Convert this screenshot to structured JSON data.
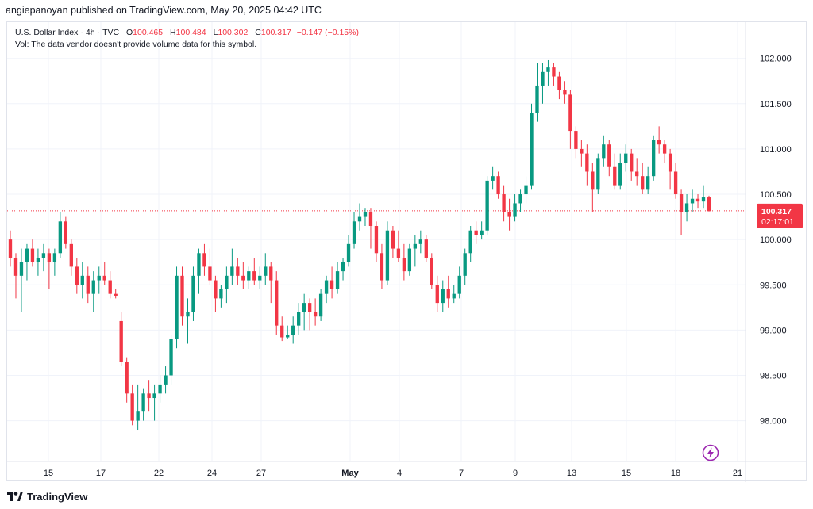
{
  "published": "angiepanoyan published on TradingView.com, May 20, 2025 04:42 UTC",
  "legend": {
    "symbol": "U.S. Dollar Index",
    "interval": "4h",
    "exchange": "TVC",
    "o_key": "O",
    "o_val": "100.465",
    "h_key": "H",
    "h_val": "100.484",
    "l_key": "L",
    "l_val": "100.302",
    "c_key": "C",
    "c_val": "100.317",
    "change": "−0.147 (−0.15%)",
    "vol_note": "Vol: The data vendor doesn't provide volume data for this symbol."
  },
  "price_tag": {
    "price": "100.317",
    "countdown": "02:17:01"
  },
  "footer": {
    "brand": "TradingView",
    "logo_icon": "tradingview-logo-icon"
  },
  "colors": {
    "up": "#089981",
    "down": "#f23645",
    "grid": "#f0f3fa",
    "text": "#131722",
    "accent": "#9c27b0"
  },
  "chart_data": {
    "type": "candlestick",
    "title": "U.S. Dollar Index · 4h · TVC",
    "ylim": [
      97.55,
      102.4
    ],
    "y_ticks": [
      "98.000",
      "98.500",
      "99.000",
      "99.500",
      "100.000",
      "100.500",
      "101.000",
      "101.500",
      "102.000"
    ],
    "x_ticks": [
      "15",
      "17",
      "22",
      "24",
      "27",
      "May",
      "4",
      "7",
      "9",
      "13",
      "15",
      "18",
      "21"
    ],
    "last_price": 100.317,
    "candles": [
      {
        "o": 100.0,
        "h": 100.1,
        "l": 99.7,
        "c": 99.8
      },
      {
        "o": 99.8,
        "h": 99.85,
        "l": 99.35,
        "c": 99.6
      },
      {
        "o": 99.6,
        "h": 99.9,
        "l": 99.2,
        "c": 99.75
      },
      {
        "o": 99.75,
        "h": 99.95,
        "l": 99.55,
        "c": 99.9
      },
      {
        "o": 99.9,
        "h": 100.0,
        "l": 99.7,
        "c": 99.75
      },
      {
        "o": 99.75,
        "h": 99.9,
        "l": 99.6,
        "c": 99.8
      },
      {
        "o": 99.8,
        "h": 99.95,
        "l": 99.65,
        "c": 99.85
      },
      {
        "o": 99.85,
        "h": 99.9,
        "l": 99.45,
        "c": 99.75
      },
      {
        "o": 99.75,
        "h": 99.9,
        "l": 99.6,
        "c": 99.85
      },
      {
        "o": 99.85,
        "h": 100.3,
        "l": 99.8,
        "c": 100.2
      },
      {
        "o": 100.2,
        "h": 100.25,
        "l": 99.9,
        "c": 99.95
      },
      {
        "o": 99.95,
        "h": 100.0,
        "l": 99.6,
        "c": 99.7
      },
      {
        "o": 99.7,
        "h": 99.8,
        "l": 99.4,
        "c": 99.5
      },
      {
        "o": 99.5,
        "h": 99.75,
        "l": 99.35,
        "c": 99.6
      },
      {
        "o": 99.6,
        "h": 99.7,
        "l": 99.3,
        "c": 99.4
      },
      {
        "o": 99.4,
        "h": 99.65,
        "l": 99.2,
        "c": 99.55
      },
      {
        "o": 99.55,
        "h": 99.7,
        "l": 99.4,
        "c": 99.6
      },
      {
        "o": 99.6,
        "h": 99.75,
        "l": 99.5,
        "c": 99.55
      },
      {
        "o": 99.55,
        "h": 99.65,
        "l": 99.35,
        "c": 99.4
      },
      {
        "o": 99.4,
        "h": 99.45,
        "l": 99.35,
        "c": 99.38
      },
      {
        "o": 99.1,
        "h": 99.2,
        "l": 98.6,
        "c": 98.65
      },
      {
        "o": 98.65,
        "h": 98.7,
        "l": 98.2,
        "c": 98.3
      },
      {
        "o": 98.3,
        "h": 98.4,
        "l": 97.95,
        "c": 98.0
      },
      {
        "o": 98.0,
        "h": 98.4,
        "l": 97.9,
        "c": 98.1
      },
      {
        "o": 98.1,
        "h": 98.35,
        "l": 98.0,
        "c": 98.3
      },
      {
        "o": 98.3,
        "h": 98.45,
        "l": 98.1,
        "c": 98.25
      },
      {
        "o": 98.25,
        "h": 98.4,
        "l": 98.0,
        "c": 98.3
      },
      {
        "o": 98.3,
        "h": 98.5,
        "l": 98.2,
        "c": 98.4
      },
      {
        "o": 98.4,
        "h": 98.6,
        "l": 98.3,
        "c": 98.5
      },
      {
        "o": 98.5,
        "h": 98.95,
        "l": 98.4,
        "c": 98.9
      },
      {
        "o": 98.9,
        "h": 99.7,
        "l": 98.8,
        "c": 99.6
      },
      {
        "o": 99.6,
        "h": 99.7,
        "l": 99.05,
        "c": 99.15
      },
      {
        "o": 99.15,
        "h": 99.35,
        "l": 98.85,
        "c": 99.2
      },
      {
        "o": 99.2,
        "h": 99.7,
        "l": 99.1,
        "c": 99.6
      },
      {
        "o": 99.6,
        "h": 99.9,
        "l": 99.4,
        "c": 99.85
      },
      {
        "o": 99.85,
        "h": 99.95,
        "l": 99.6,
        "c": 99.7
      },
      {
        "o": 99.7,
        "h": 99.9,
        "l": 99.5,
        "c": 99.55
      },
      {
        "o": 99.55,
        "h": 99.6,
        "l": 99.2,
        "c": 99.35
      },
      {
        "o": 99.35,
        "h": 99.5,
        "l": 99.25,
        "c": 99.45
      },
      {
        "o": 99.45,
        "h": 99.7,
        "l": 99.3,
        "c": 99.6
      },
      {
        "o": 99.6,
        "h": 99.9,
        "l": 99.5,
        "c": 99.7
      },
      {
        "o": 99.7,
        "h": 99.8,
        "l": 99.5,
        "c": 99.6
      },
      {
        "o": 99.6,
        "h": 99.75,
        "l": 99.45,
        "c": 99.55
      },
      {
        "o": 99.55,
        "h": 99.7,
        "l": 99.45,
        "c": 99.65
      },
      {
        "o": 99.65,
        "h": 99.8,
        "l": 99.5,
        "c": 99.55
      },
      {
        "o": 99.55,
        "h": 99.7,
        "l": 99.45,
        "c": 99.6
      },
      {
        "o": 99.6,
        "h": 99.85,
        "l": 99.5,
        "c": 99.7
      },
      {
        "o": 99.7,
        "h": 99.75,
        "l": 99.3,
        "c": 99.55
      },
      {
        "o": 99.55,
        "h": 99.65,
        "l": 98.95,
        "c": 99.05
      },
      {
        "o": 99.05,
        "h": 99.15,
        "l": 98.88,
        "c": 98.92
      },
      {
        "o": 98.92,
        "h": 99.05,
        "l": 98.9,
        "c": 98.95
      },
      {
        "o": 98.95,
        "h": 99.15,
        "l": 98.85,
        "c": 99.05
      },
      {
        "o": 99.05,
        "h": 99.3,
        "l": 98.95,
        "c": 99.2
      },
      {
        "o": 99.2,
        "h": 99.4,
        "l": 99.0,
        "c": 99.3
      },
      {
        "o": 99.3,
        "h": 99.35,
        "l": 99.0,
        "c": 99.2
      },
      {
        "o": 99.2,
        "h": 99.35,
        "l": 99.05,
        "c": 99.15
      },
      {
        "o": 99.15,
        "h": 99.45,
        "l": 99.1,
        "c": 99.4
      },
      {
        "o": 99.4,
        "h": 99.6,
        "l": 99.3,
        "c": 99.55
      },
      {
        "o": 99.55,
        "h": 99.7,
        "l": 99.35,
        "c": 99.45
      },
      {
        "o": 99.45,
        "h": 99.75,
        "l": 99.4,
        "c": 99.65
      },
      {
        "o": 99.65,
        "h": 99.8,
        "l": 99.55,
        "c": 99.75
      },
      {
        "o": 99.75,
        "h": 100.05,
        "l": 99.7,
        "c": 99.95
      },
      {
        "o": 99.95,
        "h": 100.3,
        "l": 99.9,
        "c": 100.2
      },
      {
        "o": 100.2,
        "h": 100.4,
        "l": 100.1,
        "c": 100.25
      },
      {
        "o": 100.25,
        "h": 100.35,
        "l": 100.15,
        "c": 100.3
      },
      {
        "o": 100.3,
        "h": 100.35,
        "l": 99.9,
        "c": 100.15
      },
      {
        "o": 100.15,
        "h": 100.2,
        "l": 99.75,
        "c": 99.85
      },
      {
        "o": 99.85,
        "h": 99.95,
        "l": 99.45,
        "c": 99.55
      },
      {
        "o": 99.55,
        "h": 100.2,
        "l": 99.5,
        "c": 100.1
      },
      {
        "o": 100.1,
        "h": 100.15,
        "l": 99.8,
        "c": 99.9
      },
      {
        "o": 99.9,
        "h": 100.1,
        "l": 99.75,
        "c": 99.8
      },
      {
        "o": 99.8,
        "h": 99.95,
        "l": 99.55,
        "c": 99.65
      },
      {
        "o": 99.65,
        "h": 99.95,
        "l": 99.6,
        "c": 99.9
      },
      {
        "o": 99.9,
        "h": 100.05,
        "l": 99.7,
        "c": 99.95
      },
      {
        "o": 99.95,
        "h": 100.1,
        "l": 99.85,
        "c": 100.0
      },
      {
        "o": 100.0,
        "h": 100.05,
        "l": 99.75,
        "c": 99.8
      },
      {
        "o": 99.8,
        "h": 99.85,
        "l": 99.45,
        "c": 99.5
      },
      {
        "o": 99.5,
        "h": 99.6,
        "l": 99.2,
        "c": 99.3
      },
      {
        "o": 99.3,
        "h": 99.55,
        "l": 99.2,
        "c": 99.45
      },
      {
        "o": 99.45,
        "h": 99.6,
        "l": 99.25,
        "c": 99.35
      },
      {
        "o": 99.35,
        "h": 99.5,
        "l": 99.3,
        "c": 99.4
      },
      {
        "o": 99.4,
        "h": 99.7,
        "l": 99.35,
        "c": 99.6
      },
      {
        "o": 99.6,
        "h": 99.9,
        "l": 99.5,
        "c": 99.85
      },
      {
        "o": 99.85,
        "h": 100.15,
        "l": 99.75,
        "c": 100.1
      },
      {
        "o": 100.1,
        "h": 100.2,
        "l": 99.95,
        "c": 100.05
      },
      {
        "o": 100.05,
        "h": 100.2,
        "l": 100.0,
        "c": 100.1
      },
      {
        "o": 100.1,
        "h": 100.7,
        "l": 100.05,
        "c": 100.65
      },
      {
        "o": 100.65,
        "h": 100.8,
        "l": 100.55,
        "c": 100.7
      },
      {
        "o": 100.7,
        "h": 100.75,
        "l": 100.45,
        "c": 100.5
      },
      {
        "o": 100.5,
        "h": 100.6,
        "l": 100.2,
        "c": 100.3
      },
      {
        "o": 100.3,
        "h": 100.45,
        "l": 100.1,
        "c": 100.25
      },
      {
        "o": 100.25,
        "h": 100.5,
        "l": 100.2,
        "c": 100.4
      },
      {
        "o": 100.4,
        "h": 100.55,
        "l": 100.3,
        "c": 100.5
      },
      {
        "o": 100.5,
        "h": 100.7,
        "l": 100.4,
        "c": 100.6
      },
      {
        "o": 100.6,
        "h": 101.5,
        "l": 100.55,
        "c": 101.4
      },
      {
        "o": 101.4,
        "h": 101.95,
        "l": 101.3,
        "c": 101.7
      },
      {
        "o": 101.7,
        "h": 101.95,
        "l": 101.5,
        "c": 101.85
      },
      {
        "o": 101.85,
        "h": 101.98,
        "l": 101.7,
        "c": 101.9
      },
      {
        "o": 101.9,
        "h": 101.95,
        "l": 101.7,
        "c": 101.8
      },
      {
        "o": 101.8,
        "h": 101.85,
        "l": 101.55,
        "c": 101.65
      },
      {
        "o": 101.65,
        "h": 101.75,
        "l": 101.5,
        "c": 101.6
      },
      {
        "o": 101.6,
        "h": 101.65,
        "l": 101.0,
        "c": 101.2
      },
      {
        "o": 101.2,
        "h": 101.25,
        "l": 100.9,
        "c": 101.0
      },
      {
        "o": 101.0,
        "h": 101.1,
        "l": 100.8,
        "c": 100.95
      },
      {
        "o": 100.95,
        "h": 101.05,
        "l": 100.6,
        "c": 100.75
      },
      {
        "o": 100.75,
        "h": 100.85,
        "l": 100.3,
        "c": 100.55
      },
      {
        "o": 100.55,
        "h": 100.95,
        "l": 100.5,
        "c": 100.9
      },
      {
        "o": 100.9,
        "h": 101.15,
        "l": 100.8,
        "c": 101.05
      },
      {
        "o": 101.05,
        "h": 101.1,
        "l": 100.7,
        "c": 100.8
      },
      {
        "o": 100.8,
        "h": 100.95,
        "l": 100.55,
        "c": 100.6
      },
      {
        "o": 100.6,
        "h": 100.95,
        "l": 100.55,
        "c": 100.85
      },
      {
        "o": 100.85,
        "h": 101.05,
        "l": 100.75,
        "c": 100.95
      },
      {
        "o": 100.95,
        "h": 101.0,
        "l": 100.65,
        "c": 100.75
      },
      {
        "o": 100.75,
        "h": 100.9,
        "l": 100.6,
        "c": 100.7
      },
      {
        "o": 100.7,
        "h": 100.85,
        "l": 100.5,
        "c": 100.55
      },
      {
        "o": 100.55,
        "h": 100.8,
        "l": 100.5,
        "c": 100.7
      },
      {
        "o": 100.7,
        "h": 101.15,
        "l": 100.65,
        "c": 101.1
      },
      {
        "o": 101.1,
        "h": 101.25,
        "l": 100.95,
        "c": 101.05
      },
      {
        "o": 101.05,
        "h": 101.1,
        "l": 100.85,
        "c": 100.95
      },
      {
        "o": 100.95,
        "h": 101.0,
        "l": 100.55,
        "c": 100.75
      },
      {
        "o": 100.75,
        "h": 100.85,
        "l": 100.45,
        "c": 100.5
      },
      {
        "o": 100.5,
        "h": 100.55,
        "l": 100.05,
        "c": 100.3
      },
      {
        "o": 100.3,
        "h": 100.5,
        "l": 100.2,
        "c": 100.4
      },
      {
        "o": 100.4,
        "h": 100.55,
        "l": 100.3,
        "c": 100.45
      },
      {
        "o": 100.45,
        "h": 100.5,
        "l": 100.35,
        "c": 100.42
      },
      {
        "o": 100.42,
        "h": 100.6,
        "l": 100.35,
        "c": 100.465
      },
      {
        "o": 100.465,
        "h": 100.484,
        "l": 100.302,
        "c": 100.317
      }
    ]
  }
}
